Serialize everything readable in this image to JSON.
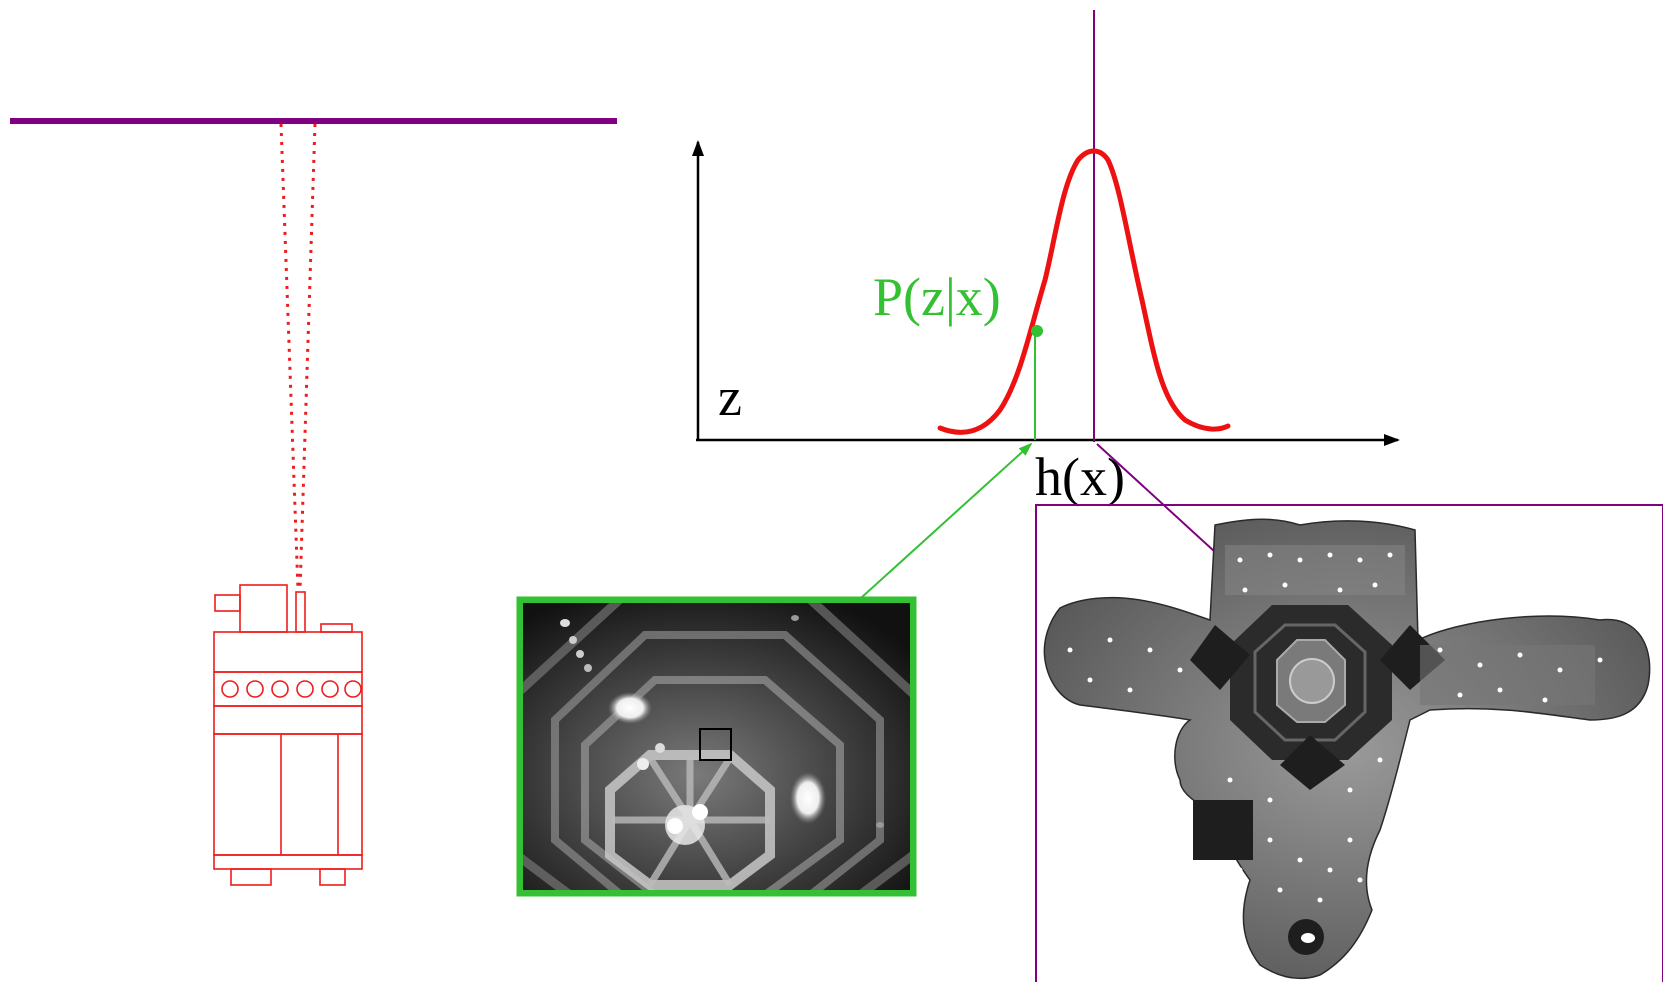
{
  "labels": {
    "likelihood": "P(z|x)",
    "measurement_axis": "z",
    "expected_measurement": "h(x)"
  },
  "colors": {
    "ceiling": "#800080",
    "robot": "#ee1c1c",
    "curve": "#ee1111",
    "likelihood": "#33c033",
    "photo_frame": "#33c033",
    "map_frame": "#800080",
    "axis": "#000000"
  },
  "icons": {
    "robot": "mobile-robot-icon",
    "camera_view": "ceiling-camera-photo",
    "mosaic": "ceiling-mosaic-map"
  }
}
